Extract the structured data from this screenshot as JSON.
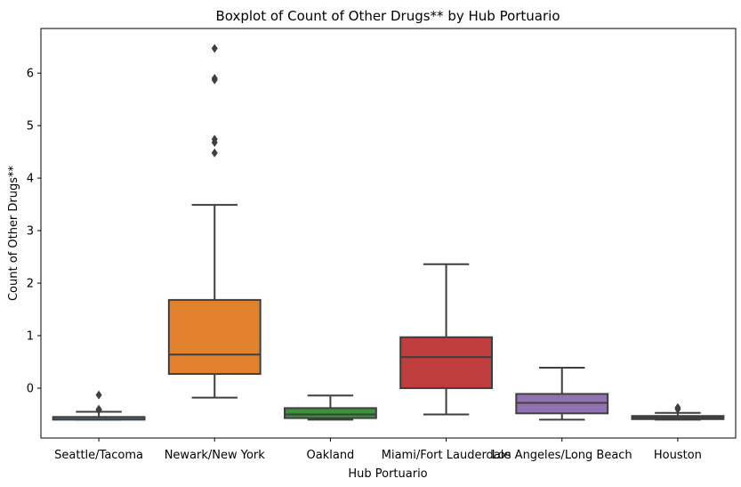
{
  "chart_data": {
    "type": "box",
    "title": "Boxplot of Count of Other Drugs** by Hub Portuario",
    "xlabel": "Hub Portuario",
    "ylabel": "Count of Other Drugs**",
    "ylim": [
      -0.95,
      6.85
    ],
    "yticks": [
      0,
      1,
      2,
      3,
      4,
      5,
      6
    ],
    "grid": false,
    "categories": [
      "Seattle/Tacoma",
      "Newark/New York",
      "Oakland",
      "Miami/Fort Lauderdale",
      "Los Angeles/Long Beach",
      "Houston"
    ],
    "boxes": [
      {
        "category": "Seattle/Tacoma",
        "color": "#3a75ae",
        "whisker_low": -0.6,
        "q1": -0.6,
        "median": -0.55,
        "q3": -0.55,
        "whisker_high": -0.45,
        "outliers": [
          -0.4,
          -0.42,
          -0.13
        ]
      },
      {
        "category": "Newark/New York",
        "color": "#e1812c",
        "whisker_low": -0.18,
        "q1": 0.27,
        "median": 0.64,
        "q3": 1.68,
        "whisker_high": 3.49,
        "outliers": [
          4.48,
          4.68,
          4.74,
          5.87,
          5.9,
          6.47
        ]
      },
      {
        "category": "Oakland",
        "color": "#3a923a",
        "whisker_low": -0.6,
        "q1": -0.57,
        "median": -0.5,
        "q3": -0.38,
        "whisker_high": -0.14,
        "outliers": []
      },
      {
        "category": "Miami/Fort Lauderdale",
        "color": "#c03d3e",
        "whisker_low": -0.5,
        "q1": 0.0,
        "median": 0.59,
        "q3": 0.97,
        "whisker_high": 2.36,
        "outliers": []
      },
      {
        "category": "Los Angeles/Long Beach",
        "color": "#9372b2",
        "whisker_low": -0.6,
        "q1": -0.48,
        "median": -0.28,
        "q3": -0.11,
        "whisker_high": 0.39,
        "outliers": []
      },
      {
        "category": "Houston",
        "color": "#845b53",
        "whisker_low": -0.6,
        "q1": -0.59,
        "median": -0.56,
        "q3": -0.53,
        "whisker_high": -0.47,
        "outliers": [
          -0.37,
          -0.4
        ]
      }
    ]
  }
}
